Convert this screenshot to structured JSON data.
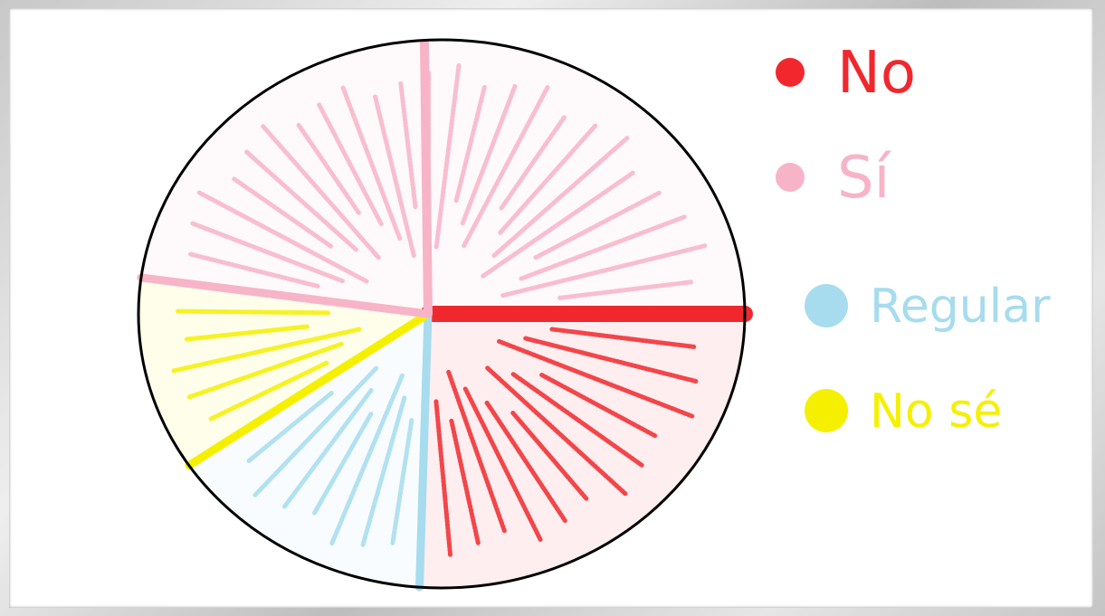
{
  "chart_data": {
    "type": "pie",
    "title": "",
    "slices": [
      {
        "label": "No",
        "value": 25.5,
        "color": "#f0282d"
      },
      {
        "label": "Regular",
        "value": 15.5,
        "color": "#a6dcee"
      },
      {
        "label": "No sé",
        "value": 11.0,
        "color": "#f5f000"
      },
      {
        "label": "Sí",
        "value": 48.0,
        "color": "#f7b4c8"
      }
    ],
    "legend_position": "right",
    "legend": [
      {
        "marker_color": "#f0282d",
        "text": "No"
      },
      {
        "marker_color": "#f7b4c8",
        "text": "Sí"
      },
      {
        "marker_color": "#a6dcee",
        "text": "Regular"
      },
      {
        "marker_color": "#f5f000",
        "text": "No sé"
      }
    ]
  }
}
